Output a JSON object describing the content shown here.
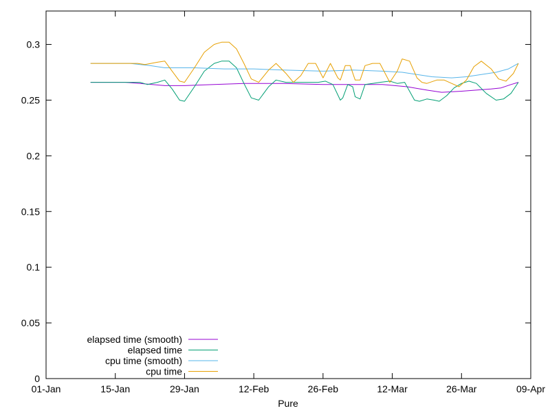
{
  "chart_data": {
    "type": "line",
    "title": "",
    "xlabel": "Pure",
    "ylabel": "",
    "x_range_days": [
      0,
      98
    ],
    "ylim": [
      0,
      0.33
    ],
    "x_ticks": [
      {
        "label": "01-Jan",
        "day": 0
      },
      {
        "label": "15-Jan",
        "day": 14
      },
      {
        "label": "29-Jan",
        "day": 28
      },
      {
        "label": "12-Feb",
        "day": 42
      },
      {
        "label": "26-Feb",
        "day": 56
      },
      {
        "label": "12-Mar",
        "day": 70
      },
      {
        "label": "26-Mar",
        "day": 84
      },
      {
        "label": "09-Apr",
        "day": 98
      }
    ],
    "y_ticks": [
      {
        "label": "0",
        "value": 0
      },
      {
        "label": "0.05",
        "value": 0.05
      },
      {
        "label": "0.1",
        "value": 0.1
      },
      {
        "label": "0.15",
        "value": 0.15
      },
      {
        "label": "0.2",
        "value": 0.2
      },
      {
        "label": "0.25",
        "value": 0.25
      },
      {
        "label": "0.3",
        "value": 0.3
      }
    ],
    "grid": false,
    "legend_position": "bottom-left",
    "series": [
      {
        "name": "elapsed time (smooth)",
        "color": "#9400d3",
        "points": [
          [
            9,
            0.266
          ],
          [
            16,
            0.266
          ],
          [
            19,
            0.265
          ],
          [
            24,
            0.263
          ],
          [
            28,
            0.263
          ],
          [
            34,
            0.264
          ],
          [
            40,
            0.265
          ],
          [
            48,
            0.265
          ],
          [
            56,
            0.264
          ],
          [
            62,
            0.264
          ],
          [
            68,
            0.264
          ],
          [
            73,
            0.262
          ],
          [
            77,
            0.259
          ],
          [
            80,
            0.257
          ],
          [
            84,
            0.258
          ],
          [
            87,
            0.259
          ],
          [
            90,
            0.26
          ],
          [
            92,
            0.261
          ],
          [
            94,
            0.264
          ],
          [
            95.5,
            0.266
          ]
        ]
      },
      {
        "name": "elapsed time",
        "color": "#009e73",
        "points": [
          [
            9,
            0.266
          ],
          [
            19,
            0.266
          ],
          [
            20.5,
            0.264
          ],
          [
            22.5,
            0.266
          ],
          [
            24,
            0.268
          ],
          [
            25.5,
            0.26
          ],
          [
            27,
            0.25
          ],
          [
            28,
            0.249
          ],
          [
            30,
            0.262
          ],
          [
            32,
            0.276
          ],
          [
            34,
            0.283
          ],
          [
            35.5,
            0.285
          ],
          [
            37,
            0.285
          ],
          [
            38.5,
            0.279
          ],
          [
            40,
            0.265
          ],
          [
            41.5,
            0.252
          ],
          [
            43,
            0.25
          ],
          [
            45,
            0.262
          ],
          [
            46.5,
            0.268
          ],
          [
            48.5,
            0.266
          ],
          [
            50.5,
            0.266
          ],
          [
            53,
            0.266
          ],
          [
            55,
            0.266
          ],
          [
            56.5,
            0.267
          ],
          [
            58,
            0.264
          ],
          [
            59.5,
            0.25
          ],
          [
            60,
            0.252
          ],
          [
            61,
            0.264
          ],
          [
            62,
            0.262
          ],
          [
            62.5,
            0.253
          ],
          [
            63.5,
            0.251
          ],
          [
            64.5,
            0.264
          ],
          [
            66,
            0.265
          ],
          [
            67.5,
            0.266
          ],
          [
            69.5,
            0.267
          ],
          [
            71,
            0.265
          ],
          [
            72.5,
            0.266
          ],
          [
            74.5,
            0.25
          ],
          [
            75.5,
            0.249
          ],
          [
            77,
            0.251
          ],
          [
            78.5,
            0.25
          ],
          [
            79.5,
            0.249
          ],
          [
            81,
            0.254
          ],
          [
            82.5,
            0.261
          ],
          [
            84,
            0.265
          ],
          [
            85.5,
            0.267
          ],
          [
            87,
            0.265
          ],
          [
            89,
            0.256
          ],
          [
            91,
            0.25
          ],
          [
            92.5,
            0.251
          ],
          [
            94,
            0.256
          ],
          [
            95.5,
            0.266
          ]
        ]
      },
      {
        "name": "cpu time (smooth)",
        "color": "#56b4e9",
        "points": [
          [
            9,
            0.283
          ],
          [
            17,
            0.283
          ],
          [
            19,
            0.282
          ],
          [
            21,
            0.281
          ],
          [
            24,
            0.279
          ],
          [
            30,
            0.279
          ],
          [
            36,
            0.278
          ],
          [
            42,
            0.278
          ],
          [
            48,
            0.277
          ],
          [
            56,
            0.276
          ],
          [
            62,
            0.277
          ],
          [
            68,
            0.276
          ],
          [
            72,
            0.275
          ],
          [
            75,
            0.273
          ],
          [
            78,
            0.271
          ],
          [
            82,
            0.27
          ],
          [
            85,
            0.271
          ],
          [
            88,
            0.273
          ],
          [
            91,
            0.275
          ],
          [
            93.5,
            0.278
          ],
          [
            95.5,
            0.283
          ]
        ]
      },
      {
        "name": "cpu time",
        "color": "#e69f00",
        "points": [
          [
            9,
            0.283
          ],
          [
            18.5,
            0.283
          ],
          [
            20,
            0.282
          ],
          [
            22.5,
            0.284
          ],
          [
            24,
            0.285
          ],
          [
            25.5,
            0.276
          ],
          [
            27,
            0.267
          ],
          [
            28,
            0.266
          ],
          [
            30,
            0.279
          ],
          [
            32,
            0.293
          ],
          [
            34,
            0.3
          ],
          [
            35.5,
            0.302
          ],
          [
            37,
            0.302
          ],
          [
            38.5,
            0.296
          ],
          [
            40,
            0.283
          ],
          [
            41.5,
            0.269
          ],
          [
            43,
            0.266
          ],
          [
            45,
            0.277
          ],
          [
            46.5,
            0.283
          ],
          [
            48.5,
            0.274
          ],
          [
            50,
            0.266
          ],
          [
            51.5,
            0.272
          ],
          [
            53,
            0.283
          ],
          [
            54.5,
            0.283
          ],
          [
            56,
            0.27
          ],
          [
            57.5,
            0.283
          ],
          [
            59,
            0.27
          ],
          [
            59.5,
            0.268
          ],
          [
            60.5,
            0.281
          ],
          [
            61.5,
            0.281
          ],
          [
            62.5,
            0.268
          ],
          [
            63.5,
            0.268
          ],
          [
            64.5,
            0.281
          ],
          [
            66,
            0.283
          ],
          [
            67.5,
            0.283
          ],
          [
            69.5,
            0.266
          ],
          [
            71,
            0.276
          ],
          [
            72,
            0.287
          ],
          [
            73.5,
            0.285
          ],
          [
            75,
            0.27
          ],
          [
            76,
            0.266
          ],
          [
            77,
            0.265
          ],
          [
            79,
            0.268
          ],
          [
            80.5,
            0.268
          ],
          [
            82,
            0.265
          ],
          [
            83.5,
            0.262
          ],
          [
            85,
            0.268
          ],
          [
            86.5,
            0.28
          ],
          [
            88,
            0.285
          ],
          [
            90,
            0.278
          ],
          [
            91.5,
            0.269
          ],
          [
            93,
            0.267
          ],
          [
            94.5,
            0.274
          ],
          [
            95.5,
            0.283
          ]
        ]
      }
    ]
  }
}
